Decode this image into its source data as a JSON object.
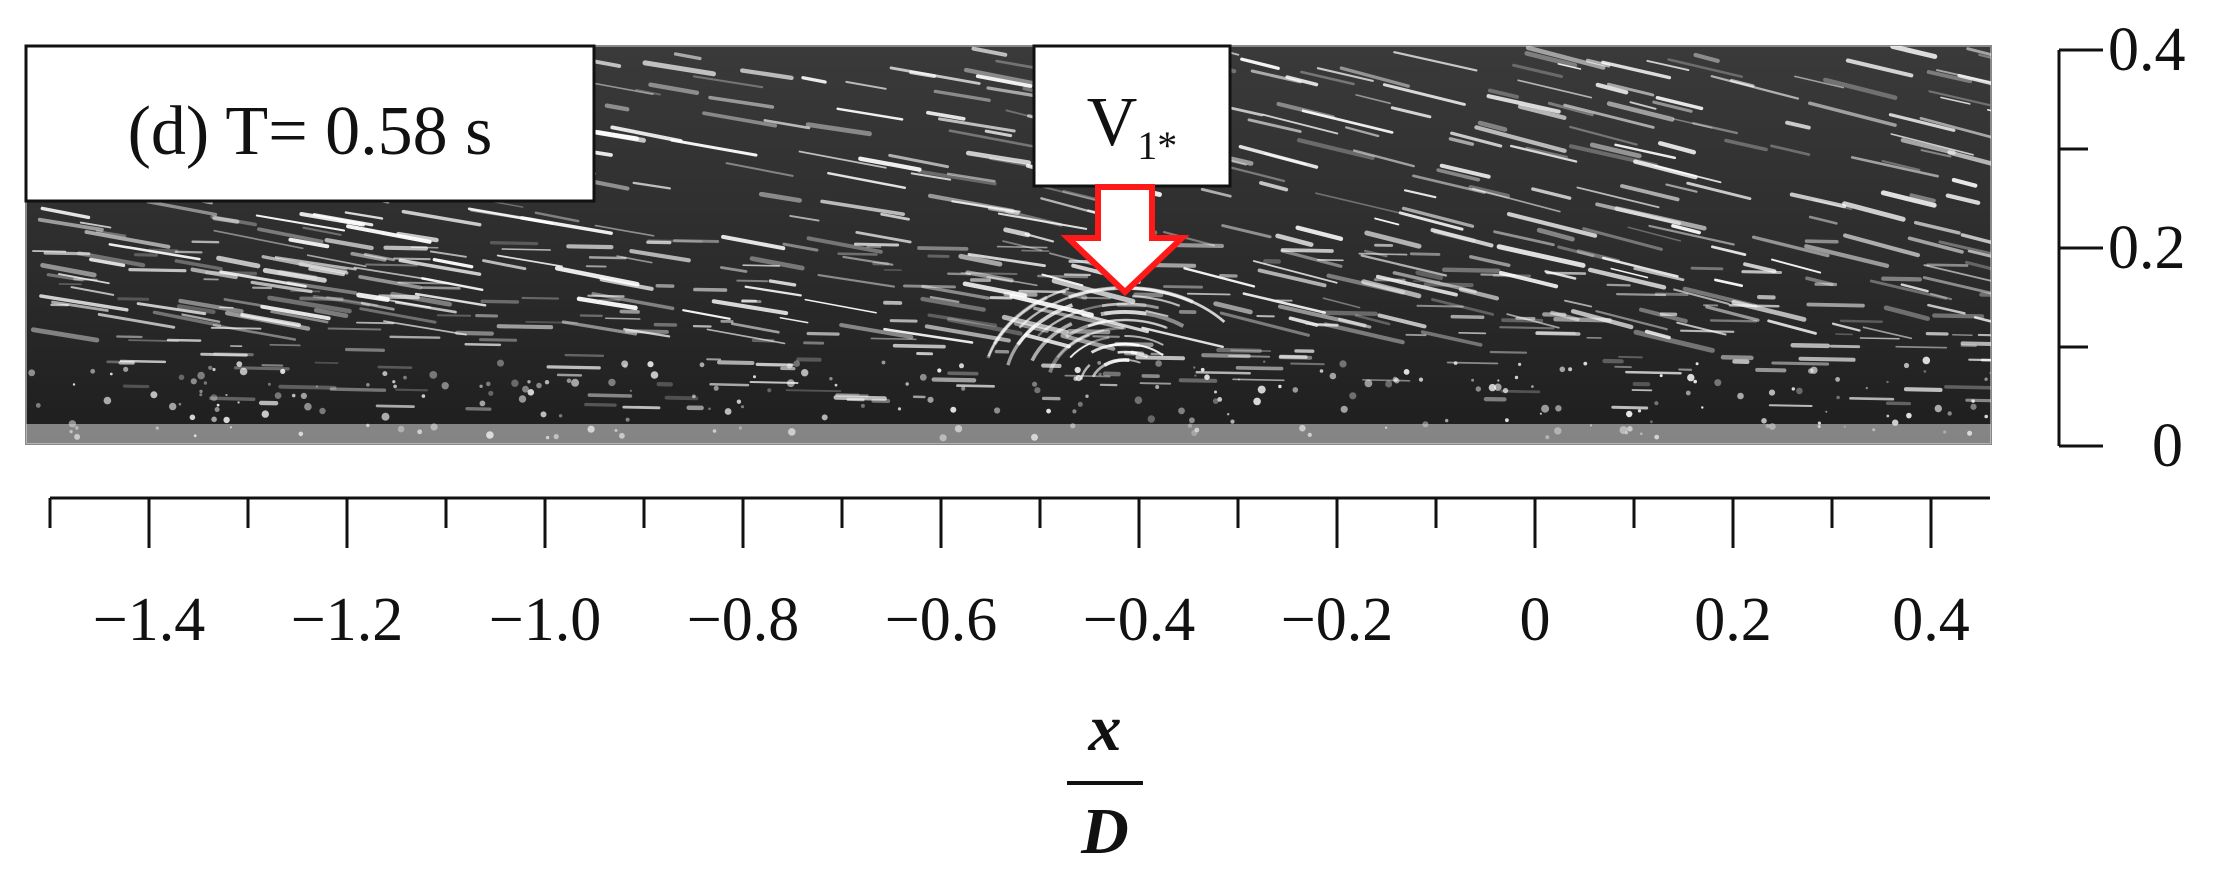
{
  "panel": {
    "label": "(d) T= 0.58 s"
  },
  "vortex_marker": {
    "label_main": "V",
    "label_sub": "1*",
    "arrow_color": "#ff1a1a"
  },
  "x_axis": {
    "ticks": [
      "−1.4",
      "−1.2",
      "−1.0",
      "−0.8",
      "−0.6",
      "−0.4",
      "−0.2",
      "0",
      "0.2",
      "0.4"
    ],
    "label_numerator": "x",
    "label_denominator": "D"
  },
  "y_axis": {
    "ticks": [
      "0",
      "0.2",
      "0.4"
    ]
  },
  "colors": {
    "image_background": "#2a2a2a",
    "streak": "#ffffff",
    "axis": "#111111"
  }
}
